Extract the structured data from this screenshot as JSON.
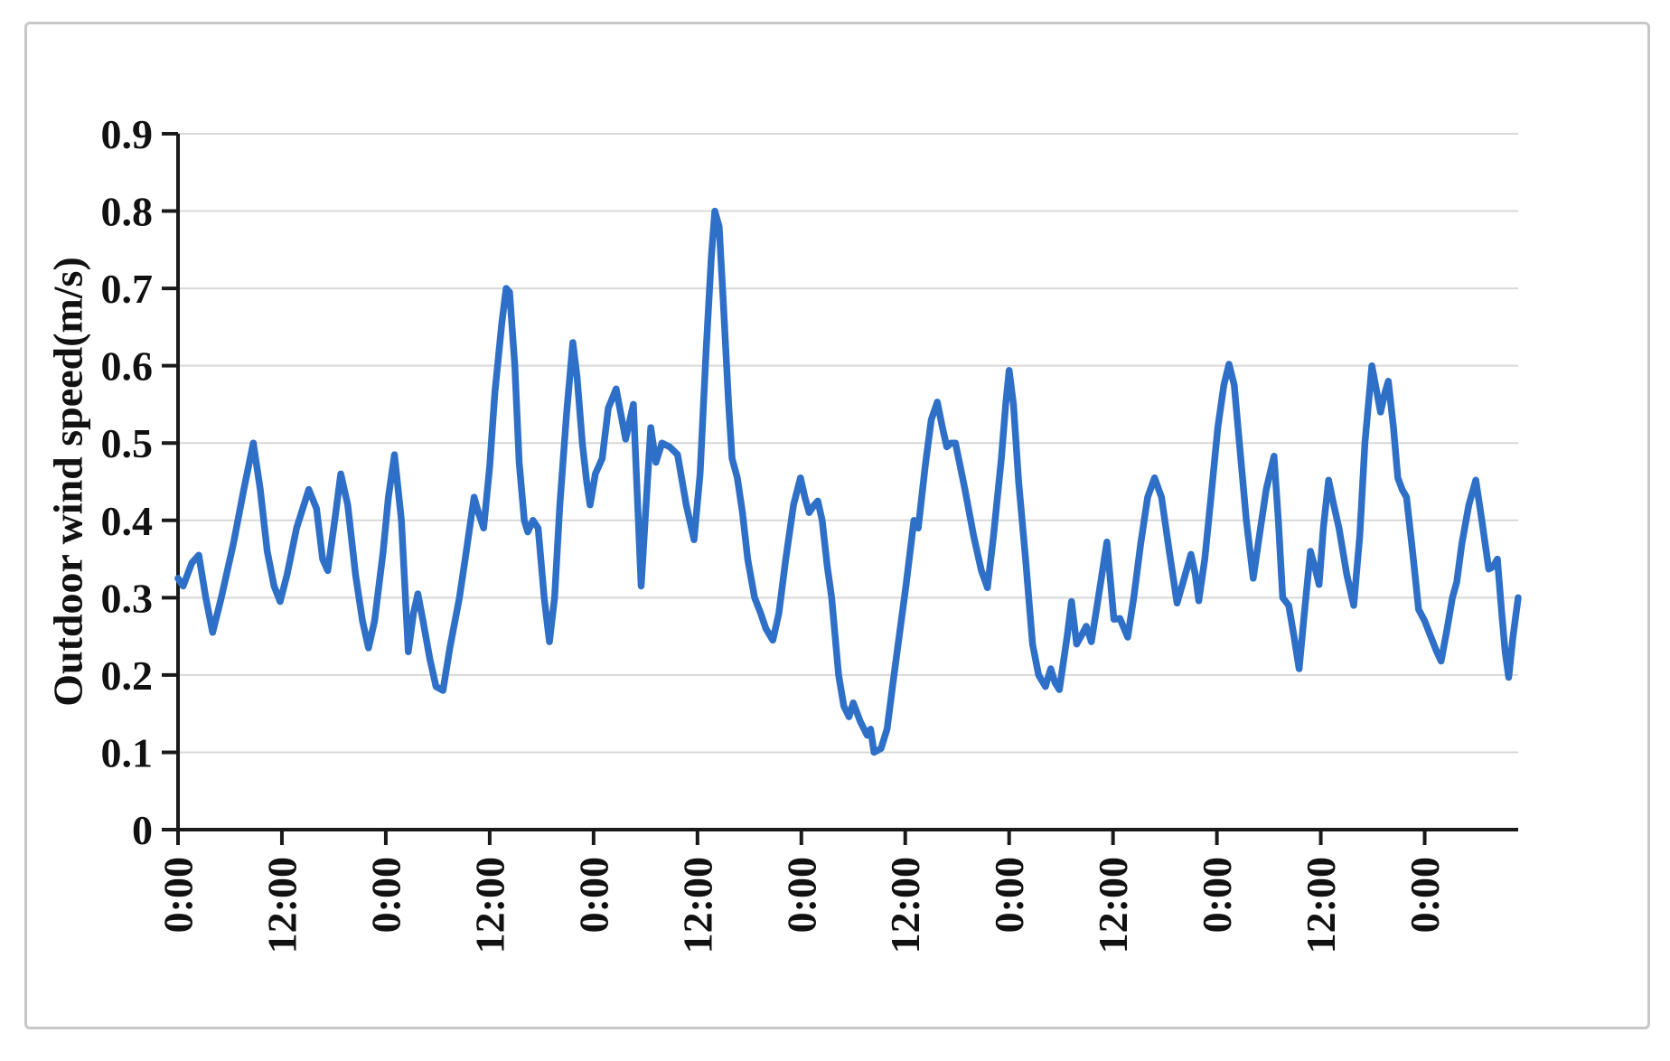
{
  "chart_data": {
    "type": "line",
    "title": "",
    "xlabel": "",
    "ylabel": "Outdoor wind speed(m/s)",
    "ylim": [
      0,
      0.9
    ],
    "y_tick_step": 0.1,
    "y_tick_labels": [
      "0",
      "0.1",
      "0.2",
      "0.3",
      "0.4",
      "0.5",
      "0.6",
      "0.7",
      "0.8",
      "0.9"
    ],
    "x_tick_labels": [
      "0:00",
      "12:00",
      "0:00",
      "12:00",
      "0:00",
      "12:00",
      "0:00",
      "12:00",
      "0:00",
      "12:00",
      "0:00",
      "12:00",
      "0:00"
    ],
    "x_tick_interval_hours": 12,
    "x_range_hours": [
      0,
      154.8
    ],
    "grid": "horizontal-only",
    "legend_position": "none",
    "series": [
      {
        "name": "Outdoor wind speed",
        "units": "m/s",
        "points": [
          [
            0,
            0.325
          ],
          [
            0.6,
            0.315
          ],
          [
            1.6,
            0.345
          ],
          [
            2.4,
            0.355
          ],
          [
            3.2,
            0.3
          ],
          [
            4,
            0.255
          ],
          [
            5,
            0.3
          ],
          [
            6.4,
            0.37
          ],
          [
            7.6,
            0.44
          ],
          [
            8.7,
            0.5
          ],
          [
            9.5,
            0.44
          ],
          [
            10.3,
            0.36
          ],
          [
            11.1,
            0.315
          ],
          [
            11.8,
            0.295
          ],
          [
            12.6,
            0.33
          ],
          [
            13.7,
            0.39
          ],
          [
            15.1,
            0.44
          ],
          [
            16,
            0.415
          ],
          [
            16.7,
            0.35
          ],
          [
            17.3,
            0.335
          ],
          [
            18.1,
            0.4
          ],
          [
            18.8,
            0.46
          ],
          [
            19.6,
            0.42
          ],
          [
            20.5,
            0.33
          ],
          [
            21.3,
            0.27
          ],
          [
            22,
            0.235
          ],
          [
            22.7,
            0.27
          ],
          [
            23.7,
            0.36
          ],
          [
            24.3,
            0.43
          ],
          [
            25,
            0.485
          ],
          [
            25.8,
            0.4
          ],
          [
            26.6,
            0.23
          ],
          [
            27.2,
            0.28
          ],
          [
            27.7,
            0.305
          ],
          [
            28.3,
            0.27
          ],
          [
            29.1,
            0.22
          ],
          [
            29.8,
            0.185
          ],
          [
            30.6,
            0.18
          ],
          [
            31.4,
            0.235
          ],
          [
            32.5,
            0.3
          ],
          [
            33.3,
            0.36
          ],
          [
            34.2,
            0.43
          ],
          [
            34.7,
            0.41
          ],
          [
            35.3,
            0.39
          ],
          [
            36,
            0.47
          ],
          [
            36.6,
            0.565
          ],
          [
            37.4,
            0.655
          ],
          [
            37.9,
            0.7
          ],
          [
            38.3,
            0.695
          ],
          [
            38.9,
            0.6
          ],
          [
            39.4,
            0.475
          ],
          [
            40,
            0.4
          ],
          [
            40.4,
            0.385
          ],
          [
            41,
            0.4
          ],
          [
            41.6,
            0.39
          ],
          [
            42.3,
            0.3
          ],
          [
            42.9,
            0.243
          ],
          [
            43.5,
            0.3
          ],
          [
            44.1,
            0.42
          ],
          [
            44.9,
            0.54
          ],
          [
            45.6,
            0.63
          ],
          [
            46.1,
            0.585
          ],
          [
            46.7,
            0.5
          ],
          [
            47.2,
            0.45
          ],
          [
            47.6,
            0.42
          ],
          [
            48.2,
            0.46
          ],
          [
            49,
            0.48
          ],
          [
            49.7,
            0.545
          ],
          [
            50.6,
            0.57
          ],
          [
            51.7,
            0.505
          ],
          [
            52.6,
            0.55
          ],
          [
            53.5,
            0.315
          ],
          [
            54.6,
            0.52
          ],
          [
            55.2,
            0.475
          ],
          [
            55.9,
            0.5
          ],
          [
            56.8,
            0.495
          ],
          [
            57.7,
            0.485
          ],
          [
            58.7,
            0.42
          ],
          [
            59.6,
            0.375
          ],
          [
            60.3,
            0.46
          ],
          [
            61,
            0.62
          ],
          [
            61.6,
            0.74
          ],
          [
            62,
            0.8
          ],
          [
            62.5,
            0.78
          ],
          [
            63,
            0.68
          ],
          [
            63.6,
            0.55
          ],
          [
            64,
            0.48
          ],
          [
            64.6,
            0.455
          ],
          [
            65.2,
            0.41
          ],
          [
            65.8,
            0.35
          ],
          [
            66.6,
            0.3
          ],
          [
            67.3,
            0.28
          ],
          [
            67.9,
            0.26
          ],
          [
            68.7,
            0.245
          ],
          [
            69.4,
            0.28
          ],
          [
            70.2,
            0.35
          ],
          [
            71.1,
            0.42
          ],
          [
            71.9,
            0.455
          ],
          [
            72.4,
            0.43
          ],
          [
            72.9,
            0.41
          ],
          [
            73.5,
            0.42
          ],
          [
            73.9,
            0.425
          ],
          [
            74.4,
            0.4
          ],
          [
            75,
            0.34
          ],
          [
            75.5,
            0.3
          ],
          [
            76.3,
            0.2
          ],
          [
            76.9,
            0.16
          ],
          [
            77.5,
            0.146
          ],
          [
            78,
            0.164
          ],
          [
            78.8,
            0.14
          ],
          [
            79.6,
            0.122
          ],
          [
            80,
            0.13
          ],
          [
            80.4,
            0.1
          ],
          [
            81.2,
            0.105
          ],
          [
            81.9,
            0.13
          ],
          [
            82.7,
            0.2
          ],
          [
            84.1,
            0.317
          ],
          [
            85,
            0.4
          ],
          [
            85.5,
            0.39
          ],
          [
            86.3,
            0.47
          ],
          [
            87,
            0.53
          ],
          [
            87.7,
            0.553
          ],
          [
            88.3,
            0.52
          ],
          [
            88.8,
            0.495
          ],
          [
            89.3,
            0.5
          ],
          [
            89.8,
            0.5
          ],
          [
            90.9,
            0.44
          ],
          [
            91.9,
            0.38
          ],
          [
            92.8,
            0.335
          ],
          [
            93.5,
            0.313
          ],
          [
            94.2,
            0.38
          ],
          [
            95.1,
            0.48
          ],
          [
            95.6,
            0.55
          ],
          [
            96,
            0.594
          ],
          [
            96.5,
            0.55
          ],
          [
            97.1,
            0.45
          ],
          [
            97.9,
            0.35
          ],
          [
            98.7,
            0.24
          ],
          [
            99.4,
            0.2
          ],
          [
            100.2,
            0.185
          ],
          [
            100.8,
            0.208
          ],
          [
            101.3,
            0.19
          ],
          [
            101.8,
            0.181
          ],
          [
            102.7,
            0.25
          ],
          [
            103.2,
            0.295
          ],
          [
            103.8,
            0.24
          ],
          [
            104.3,
            0.25
          ],
          [
            104.9,
            0.263
          ],
          [
            105.5,
            0.243
          ],
          [
            106.3,
            0.3
          ],
          [
            107.3,
            0.372
          ],
          [
            107.8,
            0.31
          ],
          [
            108.1,
            0.272
          ],
          [
            108.8,
            0.273
          ],
          [
            109.7,
            0.249
          ],
          [
            110.4,
            0.3
          ],
          [
            111.2,
            0.37
          ],
          [
            112,
            0.43
          ],
          [
            112.8,
            0.455
          ],
          [
            113.6,
            0.43
          ],
          [
            114.5,
            0.36
          ],
          [
            115.4,
            0.293
          ],
          [
            116.1,
            0.32
          ],
          [
            117,
            0.356
          ],
          [
            117.5,
            0.33
          ],
          [
            117.9,
            0.296
          ],
          [
            118.6,
            0.35
          ],
          [
            119.4,
            0.44
          ],
          [
            120.1,
            0.52
          ],
          [
            120.8,
            0.575
          ],
          [
            121.4,
            0.602
          ],
          [
            122,
            0.575
          ],
          [
            122.6,
            0.5
          ],
          [
            123.4,
            0.4
          ],
          [
            124.2,
            0.325
          ],
          [
            124.9,
            0.38
          ],
          [
            125.7,
            0.44
          ],
          [
            126.6,
            0.483
          ],
          [
            127.1,
            0.4
          ],
          [
            127.6,
            0.3
          ],
          [
            128.3,
            0.29
          ],
          [
            128.9,
            0.25
          ],
          [
            129.5,
            0.208
          ],
          [
            130.1,
            0.28
          ],
          [
            130.8,
            0.36
          ],
          [
            131.3,
            0.34
          ],
          [
            131.8,
            0.317
          ],
          [
            132.3,
            0.39
          ],
          [
            132.9,
            0.452
          ],
          [
            133.5,
            0.42
          ],
          [
            134.1,
            0.39
          ],
          [
            135,
            0.33
          ],
          [
            135.8,
            0.29
          ],
          [
            136.5,
            0.38
          ],
          [
            137.1,
            0.5
          ],
          [
            137.9,
            0.6
          ],
          [
            138.4,
            0.57
          ],
          [
            138.9,
            0.54
          ],
          [
            139.4,
            0.565
          ],
          [
            139.8,
            0.58
          ],
          [
            140.4,
            0.52
          ],
          [
            140.9,
            0.455
          ],
          [
            141.4,
            0.44
          ],
          [
            141.9,
            0.43
          ],
          [
            142.6,
            0.36
          ],
          [
            143.3,
            0.285
          ],
          [
            144,
            0.27
          ],
          [
            144.7,
            0.25
          ],
          [
            145.4,
            0.23
          ],
          [
            145.9,
            0.218
          ],
          [
            146.6,
            0.26
          ],
          [
            147.2,
            0.3
          ],
          [
            147.7,
            0.32
          ],
          [
            148.3,
            0.37
          ],
          [
            149.1,
            0.42
          ],
          [
            149.9,
            0.452
          ],
          [
            150.6,
            0.4
          ],
          [
            151.4,
            0.337
          ],
          [
            151.9,
            0.34
          ],
          [
            152.4,
            0.35
          ],
          [
            152.9,
            0.28
          ],
          [
            153.3,
            0.23
          ],
          [
            153.7,
            0.197
          ],
          [
            154.2,
            0.25
          ],
          [
            154.8,
            0.3
          ]
        ]
      }
    ]
  },
  "colors": {
    "line": "#2e6fc8",
    "grid": "#d8d8d8",
    "axis": "#1a1a1a",
    "frame": "#c7c7c7",
    "background": "#ffffff",
    "text": "#111111"
  }
}
